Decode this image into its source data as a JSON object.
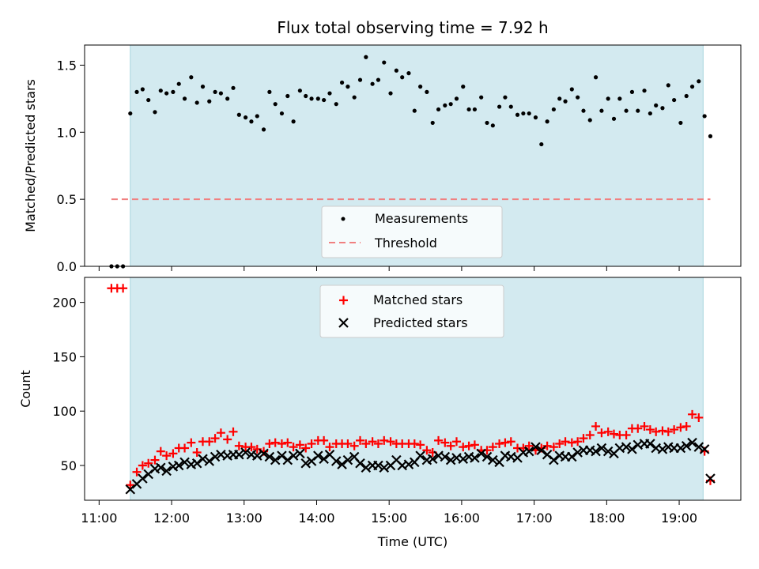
{
  "chart_data": [
    {
      "type": "scatter",
      "title": "Flux total observing time = 7.92 h",
      "ylabel": "Matched/Predicted stars",
      "xlabel": "",
      "x_unit": "hour_utc",
      "xlim": [
        10.8,
        19.85
      ],
      "ylim": [
        0,
        1.65
      ],
      "yticks": [
        "0.0",
        "0.5",
        "1.0",
        "1.5"
      ],
      "ytick_values": [
        0,
        0.5,
        1.0,
        1.5
      ],
      "shaded_interval": [
        11.43,
        19.33
      ],
      "legend_position": "lower center",
      "series": [
        {
          "name": "Measurements",
          "marker": "dot",
          "color": "#000000",
          "x": [
            11.17,
            11.25,
            11.33,
            11.43,
            11.52,
            11.6,
            11.68,
            11.77,
            11.85,
            11.93,
            12.02,
            12.1,
            12.18,
            12.27,
            12.35,
            12.43,
            12.52,
            12.6,
            12.68,
            12.77,
            12.85,
            12.93,
            13.02,
            13.1,
            13.18,
            13.27,
            13.35,
            13.43,
            13.52,
            13.6,
            13.68,
            13.77,
            13.85,
            13.93,
            14.02,
            14.1,
            14.18,
            14.27,
            14.35,
            14.43,
            14.52,
            14.6,
            14.68,
            14.77,
            14.85,
            14.93,
            15.02,
            15.1,
            15.18,
            15.27,
            15.35,
            15.43,
            15.52,
            15.6,
            15.68,
            15.77,
            15.85,
            15.93,
            16.02,
            16.1,
            16.18,
            16.27,
            16.35,
            16.43,
            16.52,
            16.6,
            16.68,
            16.77,
            16.85,
            16.93,
            17.02,
            17.1,
            17.18,
            17.27,
            17.35,
            17.43,
            17.52,
            17.6,
            17.68,
            17.77,
            17.85,
            17.93,
            18.02,
            18.1,
            18.18,
            18.27,
            18.35,
            18.43,
            18.52,
            18.6,
            18.68,
            18.77,
            18.85,
            18.93,
            19.02,
            19.1,
            19.18,
            19.27,
            19.35,
            19.43
          ],
          "y": [
            0,
            0,
            0,
            1.14,
            1.3,
            1.32,
            1.24,
            1.15,
            1.31,
            1.29,
            1.3,
            1.36,
            1.25,
            1.41,
            1.22,
            1.34,
            1.23,
            1.3,
            1.29,
            1.25,
            1.33,
            1.13,
            1.11,
            1.08,
            1.12,
            1.02,
            1.3,
            1.21,
            1.14,
            1.27,
            1.08,
            1.31,
            1.27,
            1.25,
            1.25,
            1.24,
            1.29,
            1.21,
            1.37,
            1.34,
            1.26,
            1.39,
            1.56,
            1.36,
            1.39,
            1.52,
            1.29,
            1.46,
            1.41,
            1.44,
            1.16,
            1.34,
            1.3,
            1.07,
            1.17,
            1.2,
            1.21,
            1.25,
            1.34,
            1.17,
            1.17,
            1.26,
            1.07,
            1.05,
            1.19,
            1.26,
            1.19,
            1.13,
            1.14,
            1.14,
            1.11,
            0.91,
            1.08,
            1.17,
            1.25,
            1.23,
            1.32,
            1.26,
            1.16,
            1.09,
            1.41,
            1.16,
            1.25,
            1.1,
            1.25,
            1.16,
            1.3,
            1.16,
            1.31,
            1.14,
            1.2,
            1.18,
            1.35,
            1.24,
            1.07,
            1.27,
            1.34,
            1.38,
            1.12,
            0.97
          ]
        },
        {
          "name": "Threshold",
          "marker": "dashed-line",
          "color": "#f08080",
          "x": [
            11.17,
            19.43
          ],
          "y": [
            0.5,
            0.5
          ]
        }
      ]
    },
    {
      "type": "scatter",
      "title": "",
      "xlabel": "Time (UTC)",
      "ylabel": "Count",
      "x_unit": "hour_utc",
      "xlim": [
        10.8,
        19.85
      ],
      "ylim": [
        18,
        223
      ],
      "xticks": [
        "11:00",
        "12:00",
        "13:00",
        "14:00",
        "15:00",
        "16:00",
        "17:00",
        "18:00",
        "19:00"
      ],
      "xtick_values": [
        11,
        12,
        13,
        14,
        15,
        16,
        17,
        18,
        19
      ],
      "yticks": [
        "50",
        "100",
        "150",
        "200"
      ],
      "ytick_values": [
        50,
        100,
        150,
        200
      ],
      "shaded_interval": [
        11.43,
        19.33
      ],
      "legend_position": "upper center",
      "series": [
        {
          "name": "Matched stars",
          "marker": "plus",
          "color": "#ff0000",
          "x": [
            11.17,
            11.25,
            11.33,
            11.43,
            11.52,
            11.6,
            11.68,
            11.77,
            11.85,
            11.93,
            12.02,
            12.1,
            12.18,
            12.27,
            12.35,
            12.43,
            12.52,
            12.6,
            12.68,
            12.77,
            12.85,
            12.93,
            13.02,
            13.1,
            13.18,
            13.27,
            13.35,
            13.43,
            13.52,
            13.6,
            13.68,
            13.77,
            13.85,
            13.93,
            14.02,
            14.1,
            14.18,
            14.27,
            14.35,
            14.43,
            14.52,
            14.6,
            14.68,
            14.77,
            14.85,
            14.93,
            15.02,
            15.1,
            15.18,
            15.27,
            15.35,
            15.43,
            15.52,
            15.6,
            15.68,
            15.77,
            15.85,
            15.93,
            16.02,
            16.1,
            16.18,
            16.27,
            16.35,
            16.43,
            16.52,
            16.6,
            16.68,
            16.77,
            16.85,
            16.93,
            17.02,
            17.1,
            17.18,
            17.27,
            17.35,
            17.43,
            17.52,
            17.6,
            17.68,
            17.77,
            17.85,
            17.93,
            18.02,
            18.1,
            18.18,
            18.27,
            18.35,
            18.43,
            18.52,
            18.6,
            18.68,
            18.77,
            18.85,
            18.93,
            19.02,
            19.1,
            19.18,
            19.27,
            19.35,
            19.43
          ],
          "y": [
            213,
            213,
            213,
            32,
            44,
            50,
            52,
            55,
            63,
            59,
            61,
            66,
            66,
            71,
            62,
            72,
            72,
            75,
            80,
            74,
            81,
            68,
            67,
            67,
            65,
            63,
            70,
            71,
            70,
            71,
            67,
            69,
            66,
            70,
            73,
            73,
            67,
            70,
            70,
            70,
            68,
            73,
            70,
            72,
            70,
            73,
            72,
            70,
            70,
            70,
            70,
            69,
            64,
            62,
            73,
            71,
            68,
            72,
            67,
            68,
            69,
            64,
            64,
            67,
            70,
            71,
            72,
            66,
            66,
            68,
            64,
            66,
            68,
            67,
            70,
            72,
            71,
            72,
            75,
            78,
            86,
            80,
            81,
            79,
            78,
            78,
            84,
            84,
            86,
            83,
            81,
            82,
            81,
            83,
            85,
            86,
            97,
            94,
            63,
            36
          ]
        },
        {
          "name": "Predicted stars",
          "marker": "x",
          "color": "#000000",
          "x": [
            11.43,
            11.52,
            11.6,
            11.68,
            11.77,
            11.85,
            11.93,
            12.02,
            12.1,
            12.18,
            12.27,
            12.35,
            12.43,
            12.52,
            12.6,
            12.68,
            12.77,
            12.85,
            12.93,
            13.02,
            13.1,
            13.18,
            13.27,
            13.35,
            13.43,
            13.52,
            13.6,
            13.68,
            13.77,
            13.85,
            13.93,
            14.02,
            14.1,
            14.18,
            14.27,
            14.35,
            14.43,
            14.52,
            14.6,
            14.68,
            14.77,
            14.85,
            14.93,
            15.02,
            15.1,
            15.18,
            15.27,
            15.35,
            15.43,
            15.52,
            15.6,
            15.68,
            15.77,
            15.85,
            15.93,
            16.02,
            16.1,
            16.18,
            16.27,
            16.35,
            16.43,
            16.52,
            16.6,
            16.68,
            16.77,
            16.85,
            16.93,
            17.02,
            17.1,
            17.18,
            17.27,
            17.35,
            17.43,
            17.52,
            17.6,
            17.68,
            17.77,
            17.85,
            17.93,
            18.02,
            18.1,
            18.18,
            18.27,
            18.35,
            18.43,
            18.52,
            18.6,
            18.68,
            18.77,
            18.85,
            18.93,
            19.02,
            19.1,
            19.18,
            19.27,
            19.35,
            19.43
          ],
          "y": [
            28,
            33,
            38,
            42,
            47,
            48,
            45,
            49,
            50,
            53,
            51,
            52,
            56,
            54,
            58,
            60,
            59,
            60,
            60,
            62,
            60,
            59,
            61,
            58,
            55,
            59,
            55,
            59,
            61,
            52,
            54,
            59,
            56,
            60,
            54,
            51,
            55,
            58,
            52,
            48,
            50,
            50,
            48,
            50,
            55,
            50,
            51,
            53,
            59,
            55,
            56,
            59,
            58,
            55,
            57,
            56,
            58,
            57,
            61,
            58,
            55,
            53,
            59,
            58,
            57,
            62,
            63,
            67,
            64,
            60,
            55,
            59,
            58,
            58,
            62,
            64,
            64,
            63,
            66,
            63,
            61,
            66,
            67,
            65,
            69,
            70,
            70,
            66,
            65,
            67,
            66,
            66,
            68,
            71,
            67,
            65,
            38
          ]
        }
      ]
    }
  ]
}
